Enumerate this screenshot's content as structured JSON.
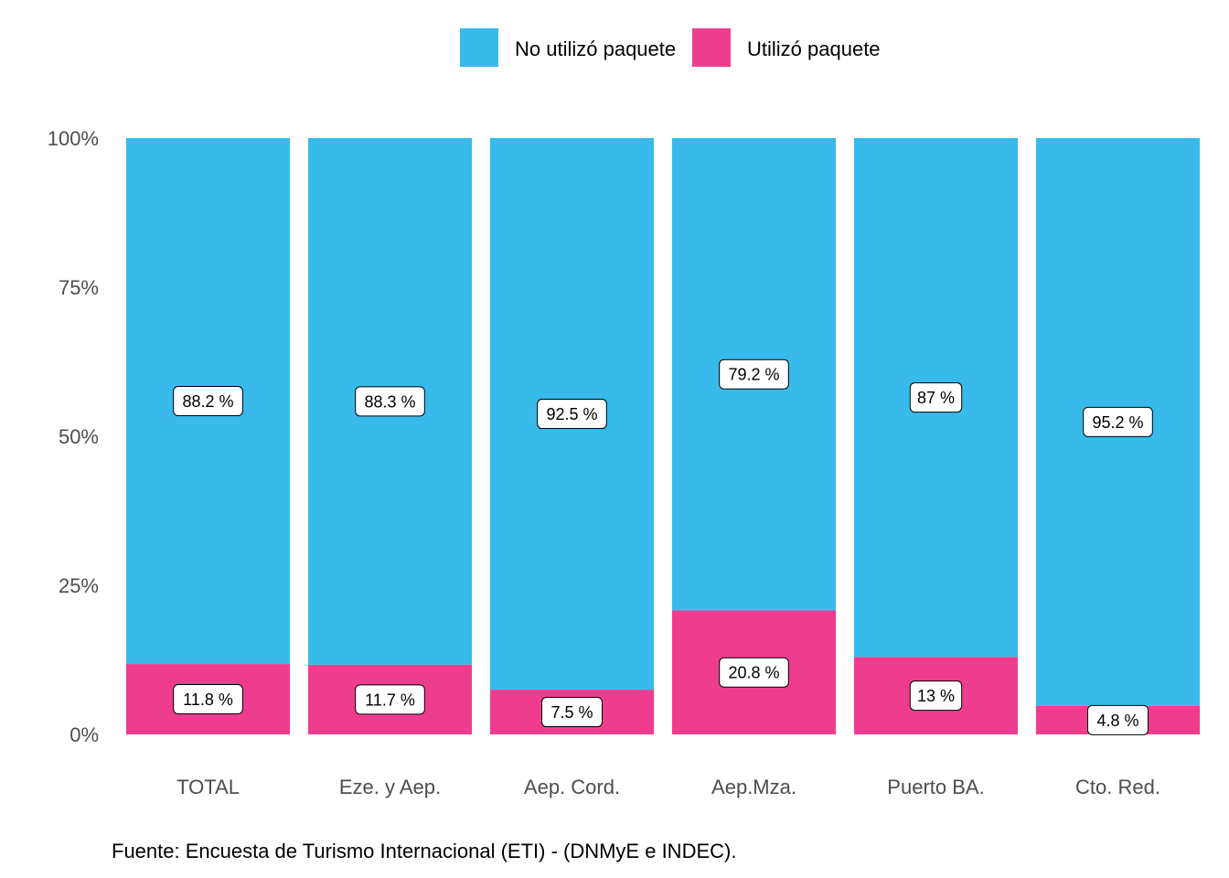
{
  "chart_data": {
    "type": "bar",
    "stacked": true,
    "categories": [
      "TOTAL",
      "Eze. y Aep.",
      "Aep. Cord.",
      "Aep.Mza.",
      "Puerto BA.",
      "Cto. Red."
    ],
    "series": [
      {
        "name": "No utilizó paquete",
        "color": "#38BAEB",
        "values": [
          88.2,
          88.3,
          92.5,
          79.2,
          87,
          95.2
        ],
        "labels": [
          "88.2 %",
          "88.3 %",
          "92.5 %",
          "79.2 %",
          "87 %",
          "95.2 %"
        ]
      },
      {
        "name": "Utilizó paquete",
        "color": "#EE3D8F",
        "values": [
          11.8,
          11.7,
          7.5,
          20.8,
          13,
          4.8
        ],
        "labels": [
          "11.8 %",
          "11.7 %",
          "7.5 %",
          "20.8 %",
          "13 %",
          "4.8 %"
        ]
      }
    ],
    "ylim": [
      0,
      100
    ],
    "yticks": [
      {
        "value": 0,
        "label": "0%"
      },
      {
        "value": 25,
        "label": "25%"
      },
      {
        "value": 50,
        "label": "50%"
      },
      {
        "value": 75,
        "label": "75%"
      },
      {
        "value": 100,
        "label": "100%"
      }
    ],
    "legend_position": "top",
    "grid": false,
    "caption": "Fuente: Encuesta de Turismo Internacional (ETI) - (DNMyE e INDEC)."
  }
}
